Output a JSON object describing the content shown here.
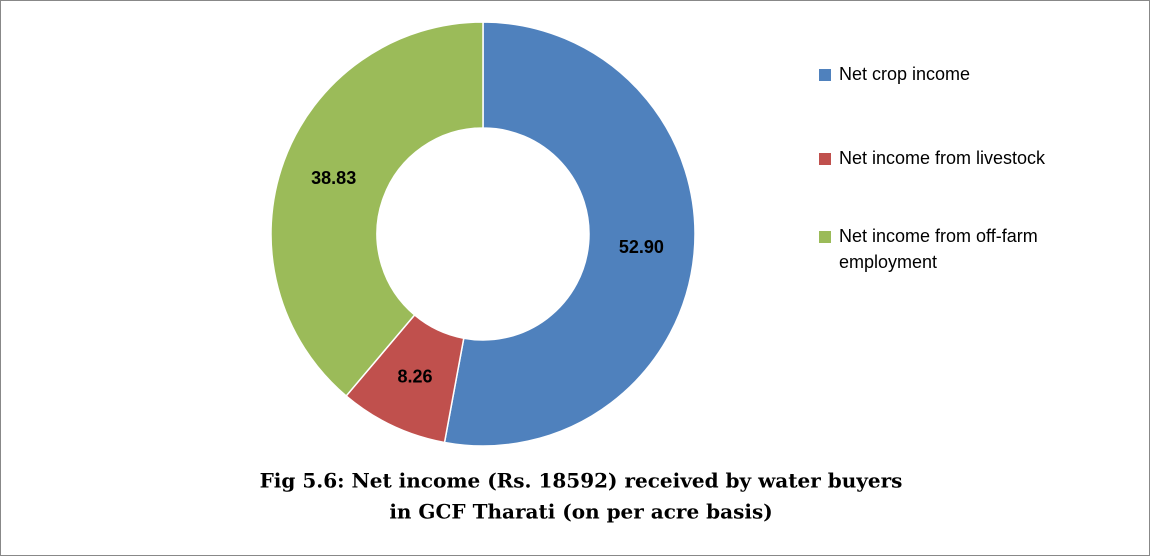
{
  "chart_data": {
    "type": "donut",
    "title": [
      "Fig 5.6: Net income (Rs. 18592) received by water buyers",
      "in GCF Tharati (on per acre basis)"
    ],
    "categories": [
      "Net crop income",
      "Net income from livestock",
      "Net income from off-farm employment"
    ],
    "values": [
      52.9,
      8.26,
      38.83
    ],
    "value_labels": [
      "52.90",
      "8.26",
      "38.83"
    ],
    "colors": [
      "#4f81bd",
      "#c0504d",
      "#9bbb59"
    ],
    "legend": "right"
  }
}
